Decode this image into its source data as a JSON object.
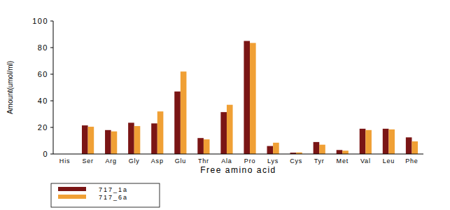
{
  "chart_data": {
    "type": "bar",
    "x_label": "Free amino acid",
    "y_label": "Amount(umol/ml)",
    "categories": [
      "His",
      "Ser",
      "Arg",
      "Gly",
      "Asp",
      "Glu",
      "Thr",
      "Ala",
      "Pro",
      "Lys",
      "Cys",
      "Tyr",
      "Met",
      "Val",
      "Leu",
      "Phe"
    ],
    "series": [
      {
        "name": "717_1a",
        "color": "#7a1515",
        "values": [
          0,
          21.5,
          18,
          23.5,
          23,
          47,
          12,
          31.5,
          85,
          6,
          1,
          9,
          3,
          19,
          19,
          12.5
        ]
      },
      {
        "name": "717_6a",
        "color": "#f0a035",
        "values": [
          0,
          20.5,
          17,
          21,
          32,
          62,
          11,
          37,
          83.5,
          8.5,
          1.2,
          7,
          2.5,
          18,
          18.5,
          9.5
        ]
      }
    ],
    "ylim": [
      0,
      100
    ],
    "yticks": [
      0,
      20,
      40,
      60,
      80,
      100
    ],
    "grid": false,
    "legend": "bottom left"
  }
}
